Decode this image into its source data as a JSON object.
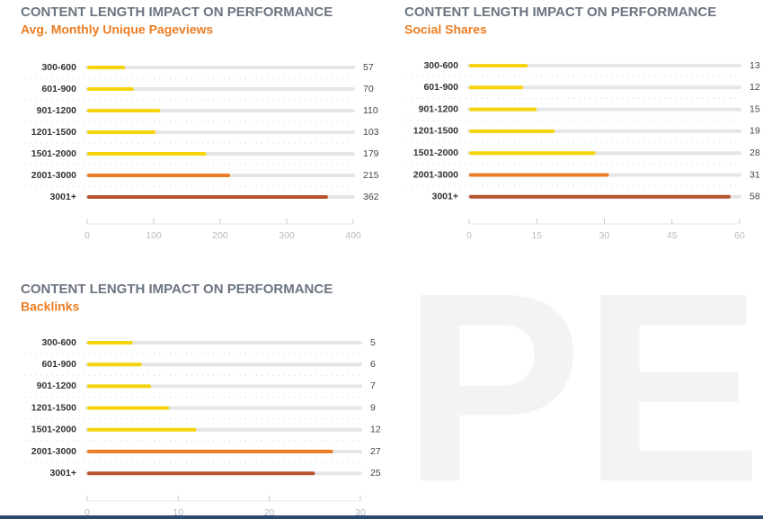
{
  "chart_data": [
    {
      "type": "hbar",
      "title": "CONTENT LENGTH IMPACT ON PERFORMANCE",
      "subtitle": "Avg. Monthly Unique Pageviews",
      "categories": [
        "300-600",
        "601-900",
        "901-1200",
        "1201-1500",
        "1501-2000",
        "2001-3000",
        "3001+"
      ],
      "values": [
        57,
        70,
        110,
        103,
        179,
        215,
        362
      ],
      "colors": [
        "#f6d40c",
        "#f6d40c",
        "#f6d40c",
        "#f6d40c",
        "#f6d40c",
        "#ec7d24",
        "#b5532c"
      ],
      "xlim": [
        0,
        400
      ],
      "xticks": [
        0,
        100,
        200,
        300,
        400
      ]
    },
    {
      "type": "hbar",
      "title": "CONTENT LENGTH IMPACT ON PERFORMANCE",
      "subtitle": "Social Shares",
      "categories": [
        "300-600",
        "601-900",
        "901-1200",
        "1201-1500",
        "1501-2000",
        "2001-3000",
        "3001+"
      ],
      "values": [
        13,
        12,
        15,
        19,
        28,
        31,
        58
      ],
      "colors": [
        "#f6d40c",
        "#f6d40c",
        "#f6d40c",
        "#f6d40c",
        "#f6d40c",
        "#ec7d24",
        "#b5532c"
      ],
      "xlim": [
        0,
        60
      ],
      "xticks": [
        0,
        15,
        30,
        45,
        60
      ]
    },
    {
      "type": "hbar",
      "title": "CONTENT LENGTH IMPACT ON PERFORMANCE",
      "subtitle": "Backlinks",
      "categories": [
        "300-600",
        "601-900",
        "901-1200",
        "1201-1500",
        "1501-2000",
        "2001-3000",
        "3001+"
      ],
      "values": [
        5,
        6,
        7,
        9,
        12,
        27,
        25
      ],
      "colors": [
        "#f6d40c",
        "#f6d40c",
        "#f6d40c",
        "#f6d40c",
        "#f6d40c",
        "#ec7d24",
        "#b5532c"
      ],
      "xlim": [
        0,
        30
      ],
      "xticks": [
        0,
        10,
        20,
        30
      ]
    }
  ],
  "watermark": "PE"
}
